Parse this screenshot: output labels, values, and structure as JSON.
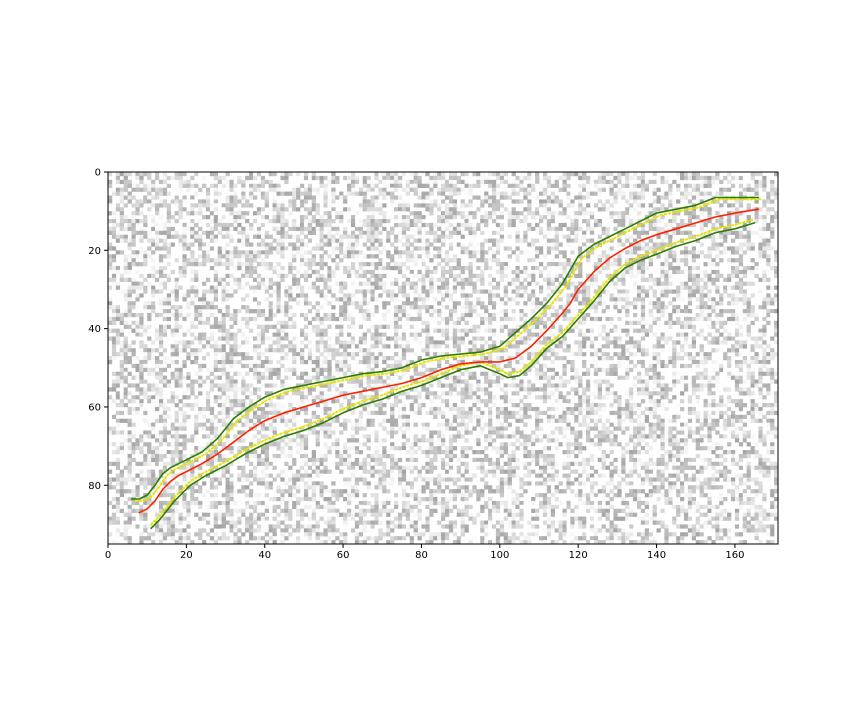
{
  "chart_data": {
    "type": "line",
    "background": "grayscale noise image",
    "xlim": [
      0,
      171
    ],
    "ylim": [
      95,
      0
    ],
    "y_inverted": true,
    "xticks": [
      0,
      20,
      40,
      60,
      80,
      100,
      120,
      140,
      160
    ],
    "yticks": [
      0,
      20,
      40,
      60,
      80
    ],
    "grid": false,
    "colors": {
      "center": "#ff0000",
      "edge": "#008000",
      "dotted": "#e5e500"
    },
    "series": [
      {
        "role": "center",
        "style": "solid",
        "color": "#ff2000",
        "x": [
          8,
          10,
          12,
          14,
          16,
          18,
          20,
          24,
          28,
          32,
          36,
          40,
          45,
          50,
          55,
          60,
          65,
          70,
          75,
          80,
          85,
          90,
          95,
          100,
          104,
          108,
          112,
          116,
          118,
          120,
          124,
          128,
          132,
          136,
          140,
          145,
          150,
          155,
          160,
          166
        ],
        "y": [
          87,
          86,
          84,
          81,
          79,
          77.5,
          76.5,
          74.5,
          72,
          69,
          66,
          63.5,
          61.5,
          60,
          58.5,
          57,
          56,
          55,
          54,
          52.5,
          50.5,
          49,
          48.5,
          48.5,
          47.5,
          44.5,
          40.5,
          36,
          33.5,
          30,
          25.5,
          22,
          19.5,
          17.5,
          16,
          14.5,
          13,
          11.5,
          10.5,
          9.5
        ]
      },
      {
        "role": "upper-edge",
        "style": "solid",
        "color": "#2e7d00",
        "x": [
          6,
          8,
          10,
          12,
          14,
          16,
          18,
          20,
          24,
          28,
          32,
          36,
          40,
          45,
          50,
          55,
          60,
          65,
          70,
          75,
          80,
          85,
          90,
          95,
          100,
          104,
          108,
          112,
          116,
          118,
          120,
          124,
          128,
          132,
          136,
          140,
          145,
          150,
          155,
          160,
          166
        ],
        "y": [
          83.5,
          83.5,
          82.5,
          80,
          77,
          75.5,
          74.5,
          73.5,
          71.5,
          68,
          63,
          60,
          57.5,
          55.5,
          54.5,
          53.5,
          52.5,
          51.5,
          51,
          50,
          48,
          47,
          46.5,
          46,
          44.5,
          41,
          37.5,
          33.5,
          28.5,
          25,
          21.5,
          18.5,
          16.5,
          14.5,
          12.5,
          10.5,
          9.5,
          8.5,
          6.5,
          6.5,
          6.5
        ]
      },
      {
        "role": "lower-edge",
        "style": "solid",
        "color": "#2e7d00",
        "x": [
          11,
          13,
          15,
          17,
          19,
          21,
          25,
          30,
          35,
          40,
          45,
          50,
          55,
          60,
          65,
          70,
          75,
          80,
          85,
          90,
          95,
          100,
          102,
          105,
          108,
          112,
          116,
          120,
          124,
          128,
          132,
          136,
          140,
          145,
          150,
          155,
          160,
          165
        ],
        "y": [
          91,
          89,
          86.5,
          84,
          82,
          80,
          77.5,
          75,
          72,
          69.5,
          67.5,
          66,
          64,
          61.5,
          59.5,
          58,
          56,
          54.5,
          52.5,
          50.5,
          49.5,
          51.5,
          52.5,
          52,
          49.5,
          45,
          42,
          37.5,
          33,
          28,
          24.5,
          22.5,
          21,
          19,
          17.5,
          15.5,
          14.5,
          13
        ]
      },
      {
        "role": "upper-edge-dotted",
        "style": "dotted",
        "color": "#e5e500",
        "x": [
          7,
          9,
          11,
          13,
          15,
          17,
          19,
          21,
          25,
          29,
          33,
          37,
          41,
          46,
          51,
          56,
          61,
          66,
          71,
          76,
          81,
          86,
          91,
          96,
          101,
          105,
          109,
          113,
          117,
          119,
          121,
          125,
          129,
          133,
          137,
          141,
          146,
          151,
          156,
          161,
          167
        ],
        "y": [
          84,
          84,
          83,
          80.5,
          77.5,
          76,
          75,
          74,
          72,
          68.5,
          63.5,
          60.5,
          58,
          56,
          55,
          54,
          53,
          52,
          51.5,
          50.5,
          48.5,
          47.5,
          47,
          46.5,
          45,
          41.5,
          38,
          34,
          29,
          25.5,
          22,
          19,
          17,
          15,
          13,
          11,
          10,
          9,
          7,
          7,
          7
        ]
      },
      {
        "role": "lower-edge-dotted",
        "style": "dotted",
        "color": "#e5e500",
        "x": [
          11,
          13,
          15,
          17,
          19,
          21,
          25,
          30,
          35,
          40,
          45,
          50,
          55,
          60,
          65,
          70,
          75,
          80,
          85,
          90,
          95,
          100,
          102,
          105,
          108,
          112,
          116,
          120,
          124,
          128,
          132,
          136,
          140,
          145,
          150,
          155,
          160,
          165
        ],
        "y": [
          90,
          88,
          85.5,
          83,
          81,
          79,
          76.5,
          74,
          71,
          68.5,
          66.5,
          65,
          63,
          60.5,
          58.5,
          57,
          55,
          53.5,
          51.5,
          49.5,
          48.5,
          50.5,
          51.5,
          51,
          48.5,
          44,
          41,
          36.5,
          32,
          27,
          23.5,
          21.5,
          20,
          18,
          16.5,
          14.5,
          13.5,
          12
        ]
      }
    ]
  }
}
